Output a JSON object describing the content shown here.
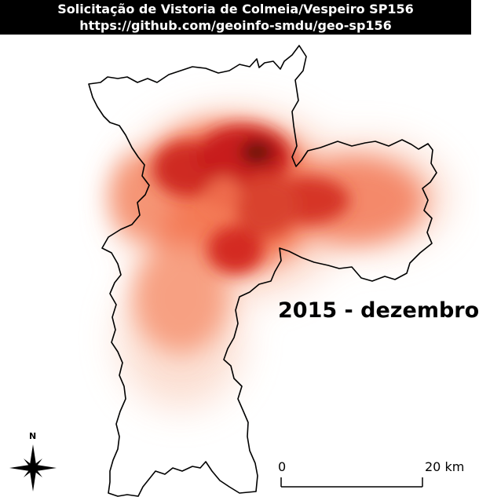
{
  "header": {
    "title": "Solicitação de Vistoria de Colmeia/Vespeiro SP156",
    "url": "https://github.com/geoinfo-smdu/geo-sp156"
  },
  "map": {
    "period_label": "2015 - dezembro",
    "heat_colors": {
      "low": "#fde0d2",
      "mid": "#f4744f",
      "high": "#c81d1f",
      "peak": "#4a0d0b"
    },
    "boundary_color": "#000000"
  },
  "scale_bar": {
    "start_label": "0",
    "end_label": "20 km"
  },
  "compass": {
    "label": "N",
    "icon": "north-arrow-icon"
  }
}
